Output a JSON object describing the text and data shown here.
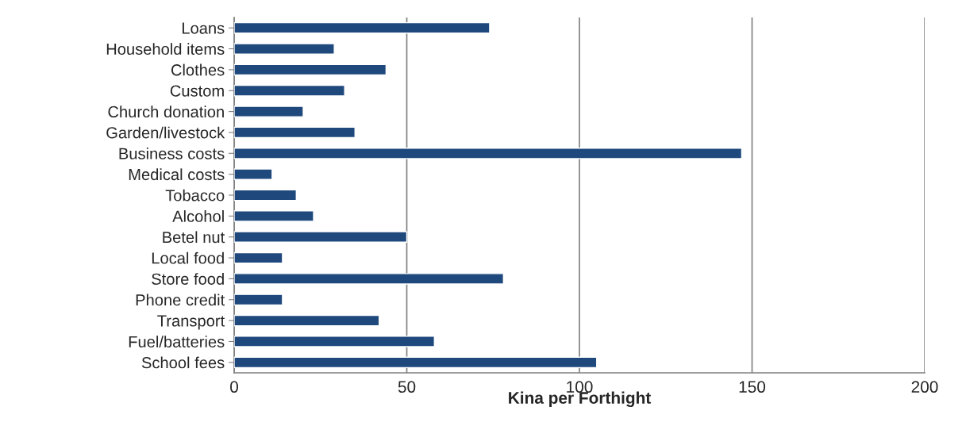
{
  "chart_data": {
    "type": "bar",
    "orientation": "horizontal",
    "xlabel": "Kina per Forthight",
    "categories": [
      "Loans",
      "Household items",
      "Clothes",
      "Custom",
      "Church donation",
      "Garden/livestock",
      "Business costs",
      "Medical costs",
      "Tobacco",
      "Alcohol",
      "Betel nut",
      "Local food",
      "Store food",
      "Phone credit",
      "Transport",
      "Fuel/batteries",
      "School fees"
    ],
    "values": [
      74,
      29,
      44,
      32,
      20,
      35,
      147,
      11,
      18,
      23,
      50,
      14,
      78,
      14,
      42,
      58,
      105
    ],
    "color": "#1f497d",
    "xlim": [
      0,
      200
    ],
    "xticks": [
      0,
      50,
      100,
      150,
      200
    ],
    "grid": "x"
  }
}
